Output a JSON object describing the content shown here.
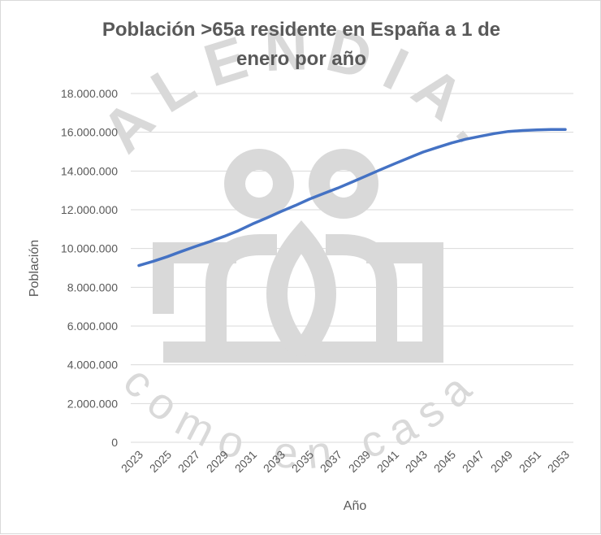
{
  "chart_data": {
    "type": "line",
    "title_lines": [
      "Población >65a residente en España a 1 de",
      "enero por año"
    ],
    "xlabel": "Año",
    "ylabel": "Población",
    "ylim": [
      0,
      18000000
    ],
    "y_ticks": [
      "0",
      "2.000.000",
      "4.000.000",
      "6.000.000",
      "8.000.000",
      "10.000.000",
      "12.000.000",
      "14.000.000",
      "16.000.000",
      "18.000.000"
    ],
    "x_tick_labels": [
      "2023",
      "2025",
      "2027",
      "2029",
      "2031",
      "2033",
      "2035",
      "2037",
      "2039",
      "2041",
      "2043",
      "2045",
      "2047",
      "2049",
      "2051",
      "2053"
    ],
    "x": [
      2023,
      2024,
      2025,
      2026,
      2027,
      2028,
      2029,
      2030,
      2031,
      2032,
      2033,
      2034,
      2035,
      2036,
      2037,
      2038,
      2039,
      2040,
      2041,
      2042,
      2043,
      2044,
      2045,
      2046,
      2047,
      2048,
      2049,
      2050,
      2051,
      2052,
      2053
    ],
    "series": [
      {
        "values": [
          9120000,
          9340000,
          9580000,
          9850000,
          10110000,
          10360000,
          10630000,
          10920000,
          11270000,
          11580000,
          11910000,
          12220000,
          12550000,
          12840000,
          13120000,
          13430000,
          13750000,
          14070000,
          14380000,
          14680000,
          14980000,
          15220000,
          15450000,
          15640000,
          15790000,
          15930000,
          16040000,
          16090000,
          16120000,
          16140000,
          16140000
        ]
      }
    ],
    "line_color": "#4472c4",
    "grid": true
  },
  "watermark": {
    "color": "#d9d9d9",
    "top_text": "ALENDIA.",
    "bottom_text": "como en casa"
  }
}
